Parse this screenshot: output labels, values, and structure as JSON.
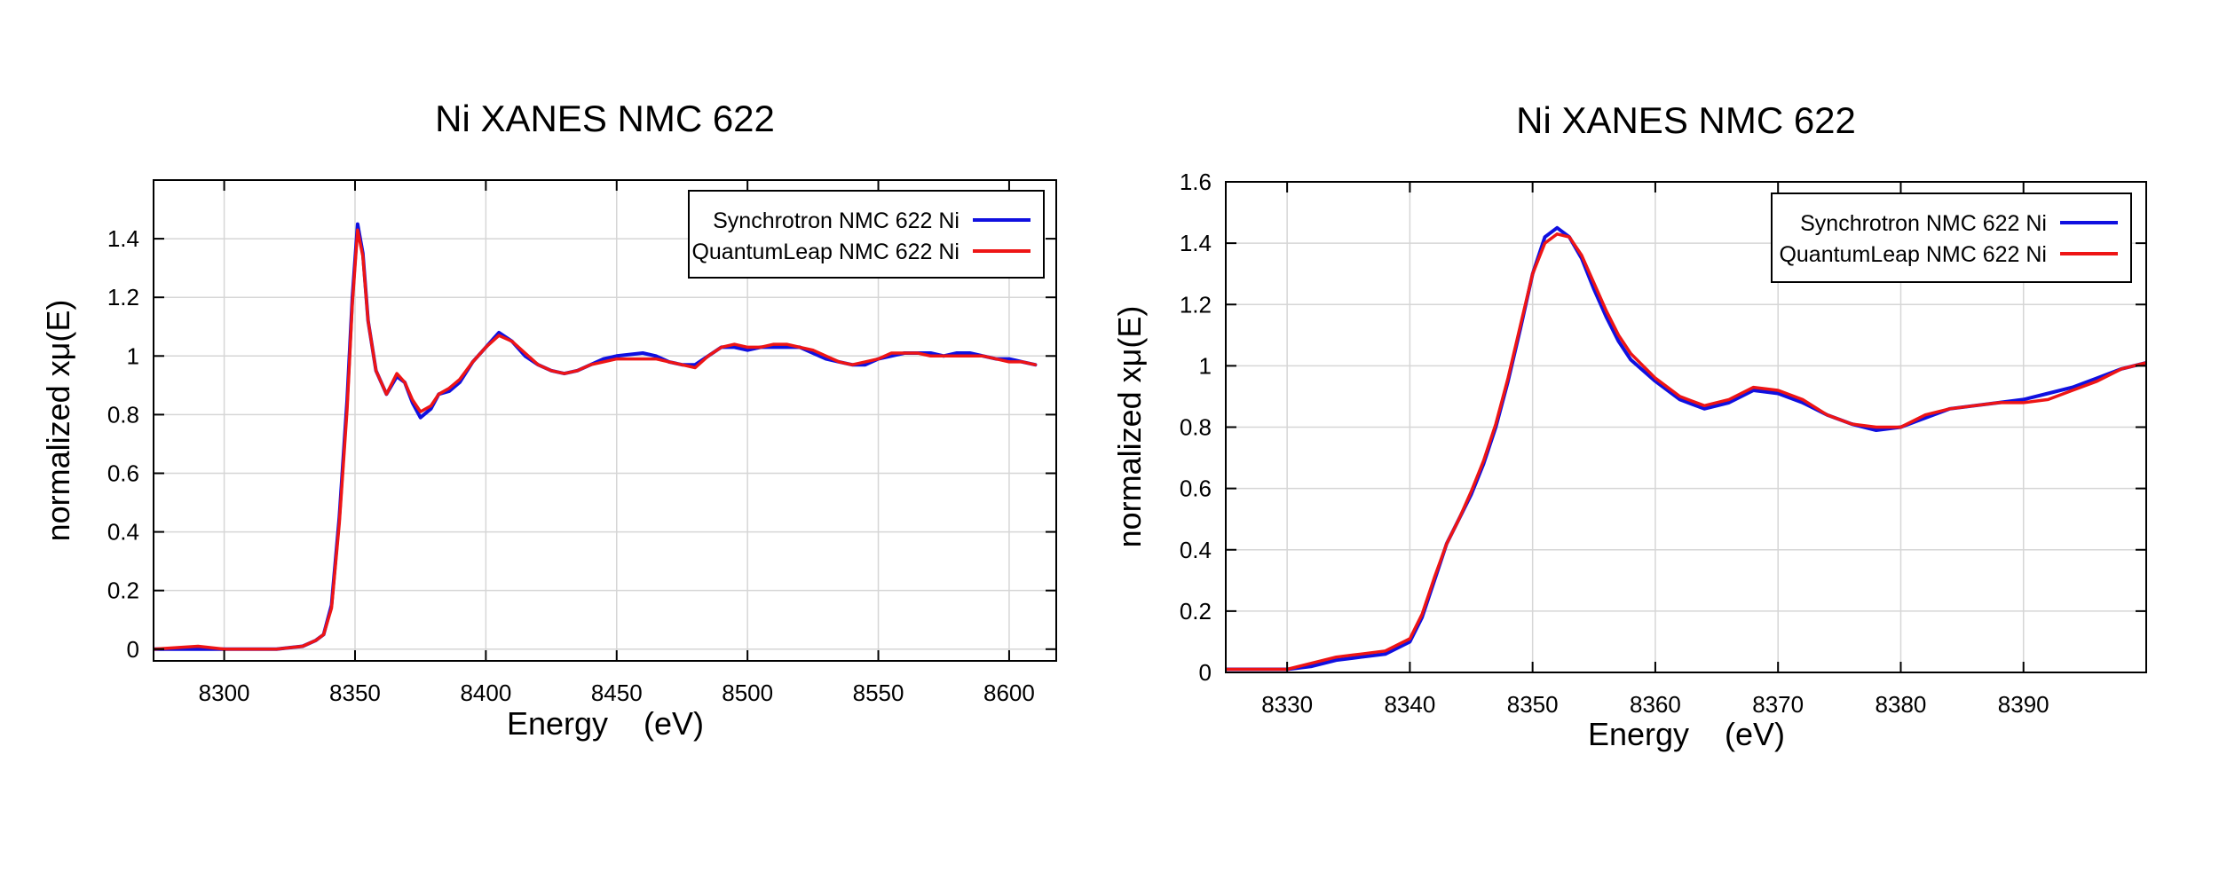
{
  "chart_data": [
    {
      "type": "line",
      "title": "Ni XANES NMC 622",
      "xlabel": "Energy    (eV)",
      "ylabel": "normalized xμ(E)",
      "xlim": [
        8273,
        8618
      ],
      "ylim": [
        -0.04,
        1.6
      ],
      "xticks": [
        8300,
        8350,
        8400,
        8450,
        8500,
        8550,
        8600
      ],
      "xtick_labels": [
        "8300",
        "8350",
        "8400",
        "8450",
        "8500",
        "8550",
        "8600"
      ],
      "yticks": [
        0,
        0.2,
        0.4,
        0.6,
        0.8,
        1.0,
        1.2,
        1.4
      ],
      "ytick_labels": [
        "0",
        "0.2",
        "0.4",
        "0.6",
        "0.8",
        "1",
        "1.2",
        "1.4"
      ],
      "grid": true,
      "legend_position": "top-right",
      "series": [
        {
          "name": "Synchrotron NMC 622 Ni",
          "color": "#1010e0",
          "x": [
            8273,
            8290,
            8300,
            8310,
            8320,
            8330,
            8335,
            8338,
            8341,
            8344,
            8347,
            8349,
            8351,
            8353,
            8355,
            8358,
            8362,
            8366,
            8369,
            8372,
            8375,
            8379,
            8382,
            8386,
            8390,
            8395,
            8400,
            8405,
            8410,
            8415,
            8420,
            8425,
            8430,
            8435,
            8440,
            8445,
            8450,
            8460,
            8465,
            8470,
            8475,
            8480,
            8485,
            8490,
            8495,
            8500,
            8505,
            8510,
            8515,
            8520,
            8525,
            8530,
            8535,
            8540,
            8545,
            8550,
            8555,
            8560,
            8565,
            8570,
            8575,
            8580,
            8585,
            8590,
            8595,
            8600,
            8605,
            8610
          ],
          "y": [
            0.0,
            0.0,
            0.0,
            0.0,
            0.0,
            0.01,
            0.03,
            0.05,
            0.15,
            0.45,
            0.85,
            1.2,
            1.45,
            1.35,
            1.12,
            0.95,
            0.87,
            0.93,
            0.91,
            0.84,
            0.79,
            0.82,
            0.87,
            0.88,
            0.91,
            0.98,
            1.03,
            1.08,
            1.05,
            1.0,
            0.97,
            0.95,
            0.94,
            0.95,
            0.97,
            0.99,
            1.0,
            1.01,
            1.0,
            0.98,
            0.97,
            0.97,
            1.0,
            1.03,
            1.03,
            1.02,
            1.03,
            1.03,
            1.03,
            1.03,
            1.01,
            0.99,
            0.98,
            0.97,
            0.97,
            0.99,
            1.0,
            1.01,
            1.01,
            1.01,
            1.0,
            1.01,
            1.01,
            1.0,
            0.99,
            0.99,
            0.98,
            0.97
          ]
        },
        {
          "name": "QuantumLeap NMC 622 Ni",
          "color": "#ee1515",
          "x": [
            8273,
            8290,
            8300,
            8310,
            8320,
            8330,
            8335,
            8338,
            8341,
            8344,
            8347,
            8349,
            8351,
            8353,
            8355,
            8358,
            8362,
            8366,
            8369,
            8372,
            8375,
            8379,
            8382,
            8386,
            8390,
            8395,
            8400,
            8405,
            8410,
            8415,
            8420,
            8425,
            8430,
            8435,
            8440,
            8445,
            8450,
            8460,
            8465,
            8470,
            8475,
            8480,
            8485,
            8490,
            8495,
            8500,
            8505,
            8510,
            8515,
            8520,
            8525,
            8530,
            8535,
            8540,
            8545,
            8550,
            8555,
            8560,
            8565,
            8570,
            8575,
            8580,
            8585,
            8590,
            8595,
            8600,
            8605,
            8610
          ],
          "y": [
            0.0,
            0.01,
            0.0,
            0.0,
            0.0,
            0.01,
            0.03,
            0.05,
            0.14,
            0.43,
            0.82,
            1.18,
            1.43,
            1.34,
            1.12,
            0.95,
            0.87,
            0.94,
            0.91,
            0.85,
            0.81,
            0.83,
            0.87,
            0.89,
            0.92,
            0.98,
            1.03,
            1.07,
            1.05,
            1.01,
            0.97,
            0.95,
            0.94,
            0.95,
            0.97,
            0.98,
            0.99,
            0.99,
            0.99,
            0.98,
            0.97,
            0.96,
            1.0,
            1.03,
            1.04,
            1.03,
            1.03,
            1.04,
            1.04,
            1.03,
            1.02,
            1.0,
            0.98,
            0.97,
            0.98,
            0.99,
            1.01,
            1.01,
            1.01,
            1.0,
            1.0,
            1.0,
            1.0,
            1.0,
            0.99,
            0.98,
            0.98,
            0.97
          ]
        }
      ]
    },
    {
      "type": "line",
      "title": "Ni XANES NMC 622",
      "xlabel": "Energy    (eV)",
      "ylabel": "normalized xμ(E)",
      "xlim": [
        8325,
        8400
      ],
      "ylim": [
        0,
        1.6
      ],
      "xticks": [
        8330,
        8340,
        8350,
        8360,
        8370,
        8380,
        8390
      ],
      "xtick_labels": [
        "8330",
        "8340",
        "8350",
        "8360",
        "8370",
        "8380",
        "8390"
      ],
      "yticks": [
        0,
        0.2,
        0.4,
        0.6,
        0.8,
        1.0,
        1.2,
        1.4,
        1.6
      ],
      "ytick_labels": [
        "0",
        "0.2",
        "0.4",
        "0.6",
        "0.8",
        "1",
        "1.2",
        "1.4",
        "1.6"
      ],
      "grid": true,
      "legend_position": "top-right",
      "series": [
        {
          "name": "Synchrotron NMC 622 Ni",
          "color": "#1010e0",
          "x": [
            8325,
            8328,
            8330,
            8332,
            8334,
            8336,
            8338,
            8340,
            8341,
            8342,
            8343,
            8344,
            8345,
            8346,
            8347,
            8348,
            8349,
            8350,
            8351,
            8352,
            8353,
            8354,
            8355,
            8356,
            8357,
            8358,
            8360,
            8362,
            8364,
            8366,
            8368,
            8370,
            8372,
            8374,
            8376,
            8378,
            8380,
            8382,
            8384,
            8386,
            8388,
            8390,
            8392,
            8394,
            8396,
            8398,
            8400
          ],
          "y": [
            0.01,
            0.01,
            0.01,
            0.02,
            0.04,
            0.05,
            0.06,
            0.1,
            0.18,
            0.3,
            0.42,
            0.5,
            0.58,
            0.68,
            0.8,
            0.95,
            1.12,
            1.3,
            1.42,
            1.45,
            1.42,
            1.35,
            1.25,
            1.16,
            1.08,
            1.02,
            0.95,
            0.89,
            0.86,
            0.88,
            0.92,
            0.91,
            0.88,
            0.84,
            0.81,
            0.79,
            0.8,
            0.83,
            0.86,
            0.87,
            0.88,
            0.89,
            0.91,
            0.93,
            0.96,
            0.99,
            1.01
          ]
        },
        {
          "name": "QuantumLeap NMC 622 Ni",
          "color": "#ee1515",
          "x": [
            8325,
            8328,
            8330,
            8332,
            8334,
            8336,
            8338,
            8340,
            8341,
            8342,
            8343,
            8344,
            8345,
            8346,
            8347,
            8348,
            8349,
            8350,
            8351,
            8352,
            8353,
            8354,
            8355,
            8356,
            8357,
            8358,
            8360,
            8362,
            8364,
            8366,
            8368,
            8370,
            8372,
            8374,
            8376,
            8378,
            8380,
            8382,
            8384,
            8386,
            8388,
            8390,
            8392,
            8394,
            8396,
            8398,
            8400
          ],
          "y": [
            0.01,
            0.01,
            0.01,
            0.03,
            0.05,
            0.06,
            0.07,
            0.11,
            0.19,
            0.31,
            0.42,
            0.5,
            0.59,
            0.69,
            0.81,
            0.96,
            1.13,
            1.3,
            1.4,
            1.43,
            1.42,
            1.36,
            1.27,
            1.18,
            1.1,
            1.04,
            0.96,
            0.9,
            0.87,
            0.89,
            0.93,
            0.92,
            0.89,
            0.84,
            0.81,
            0.8,
            0.8,
            0.84,
            0.86,
            0.87,
            0.88,
            0.88,
            0.89,
            0.92,
            0.95,
            0.99,
            1.01
          ]
        }
      ]
    }
  ]
}
